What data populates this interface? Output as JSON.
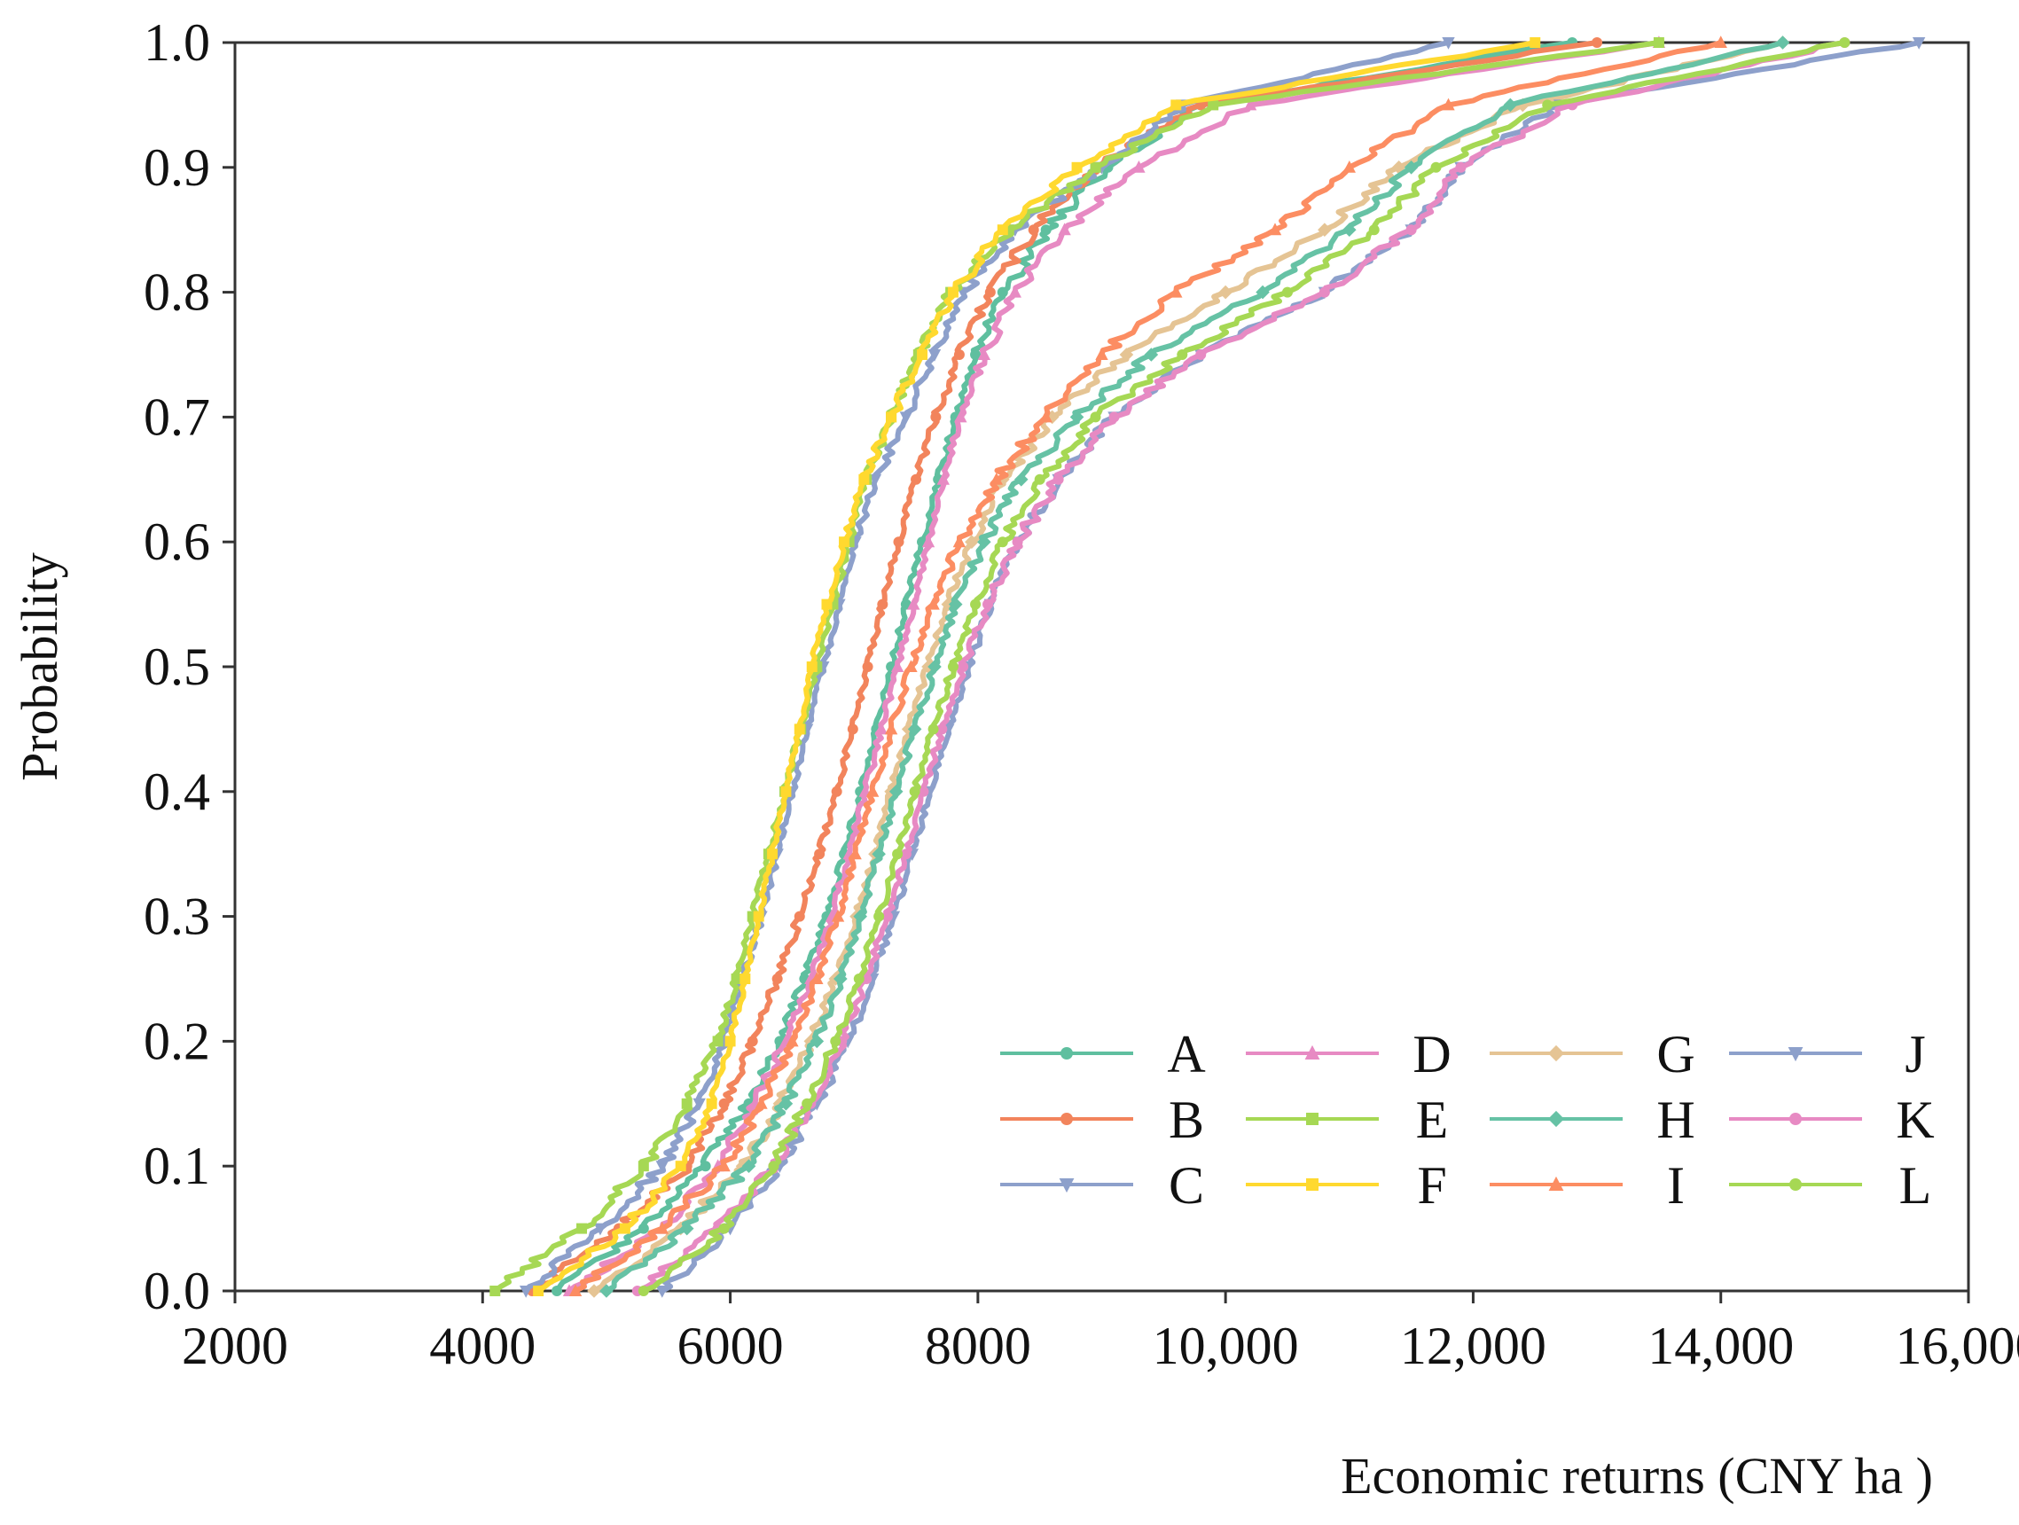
{
  "chart_data": {
    "type": "line",
    "title": "",
    "xlabel": "Economic returns (CNY ha )",
    "ylabel": "Probability",
    "xlim": [
      2000,
      16000
    ],
    "ylim": [
      0.0,
      1.0
    ],
    "x_ticks": [
      2000,
      4000,
      6000,
      8000,
      10000,
      12000,
      14000,
      16000
    ],
    "x_tick_labels": [
      "2000",
      "4000",
      "6000",
      "8000",
      "10,000",
      "12,000",
      "14,000",
      "16,000"
    ],
    "y_ticks": [
      0.0,
      0.1,
      0.2,
      0.3,
      0.4,
      0.5,
      0.6,
      0.7,
      0.8,
      0.9,
      1.0
    ],
    "y_tick_labels": [
      "0.0",
      "0.1",
      "0.2",
      "0.3",
      "0.4",
      "0.5",
      "0.6",
      "0.7",
      "0.8",
      "0.9",
      "1.0"
    ],
    "grid": false,
    "legend_position": "bottom-right",
    "probabilities": [
      0.0,
      0.05,
      0.1,
      0.15,
      0.2,
      0.25,
      0.3,
      0.35,
      0.4,
      0.45,
      0.5,
      0.55,
      0.6,
      0.65,
      0.7,
      0.75,
      0.8,
      0.85,
      0.9,
      0.95,
      1.0
    ],
    "series": [
      {
        "name": "A",
        "color": "#5fbf9f",
        "marker": "circle",
        "x": [
          4600,
          5300,
          5800,
          6150,
          6400,
          6600,
          6780,
          6920,
          7050,
          7180,
          7300,
          7420,
          7550,
          7680,
          7820,
          7980,
          8200,
          8550,
          9050,
          9800,
          12800
        ]
      },
      {
        "name": "B",
        "color": "#f2845c",
        "marker": "circle",
        "x": [
          4400,
          5100,
          5650,
          5950,
          6180,
          6380,
          6560,
          6720,
          6860,
          6990,
          7110,
          7230,
          7360,
          7500,
          7660,
          7850,
          8100,
          8450,
          8950,
          9800,
          13000
        ]
      },
      {
        "name": "C",
        "color": "#8da0cb",
        "marker": "triangle-down",
        "x": [
          4350,
          4950,
          5450,
          5750,
          5950,
          6100,
          6250,
          6380,
          6500,
          6620,
          6750,
          6880,
          7010,
          7170,
          7420,
          7650,
          7880,
          8300,
          9000,
          9650,
          11800
        ]
      },
      {
        "name": "D",
        "color": "#e78ac3",
        "marker": "triangle-up",
        "x": [
          4700,
          5450,
          5900,
          6200,
          6450,
          6650,
          6820,
          6960,
          7090,
          7220,
          7350,
          7480,
          7600,
          7720,
          7860,
          8050,
          8300,
          8700,
          9300,
          10200,
          13500
        ]
      },
      {
        "name": "E",
        "color": "#a6d854",
        "marker": "square",
        "x": [
          4100,
          4800,
          5300,
          5650,
          5900,
          6050,
          6180,
          6310,
          6440,
          6570,
          6700,
          6830,
          6960,
          7100,
          7300,
          7520,
          7780,
          8250,
          8950,
          9900,
          13500
        ]
      },
      {
        "name": "F",
        "color": "#ffd92f",
        "marker": "square",
        "x": [
          4450,
          5150,
          5600,
          5850,
          6000,
          6120,
          6230,
          6340,
          6450,
          6560,
          6660,
          6780,
          6920,
          7080,
          7300,
          7550,
          7800,
          8200,
          8800,
          9600,
          12500
        ]
      },
      {
        "name": "G",
        "color": "#e5c494",
        "marker": "diamond",
        "x": [
          4900,
          5600,
          6100,
          6400,
          6650,
          6850,
          7020,
          7170,
          7300,
          7440,
          7600,
          7760,
          7950,
          8200,
          8600,
          9200,
          10000,
          10800,
          11400,
          12400,
          14500
        ]
      },
      {
        "name": "H",
        "color": "#66c2a5",
        "marker": "diamond",
        "x": [
          5000,
          5650,
          6150,
          6450,
          6700,
          6890,
          7050,
          7200,
          7340,
          7490,
          7650,
          7820,
          8050,
          8350,
          8800,
          9400,
          10300,
          11000,
          11500,
          12300,
          14500
        ]
      },
      {
        "name": "I",
        "color": "#fc8d62",
        "marker": "triangle-up",
        "x": [
          4750,
          5450,
          5950,
          6250,
          6500,
          6700,
          6870,
          7010,
          7150,
          7300,
          7460,
          7640,
          7850,
          8150,
          8550,
          9000,
          9600,
          10400,
          11000,
          11800,
          14000
        ]
      },
      {
        "name": "J",
        "color": "#8da0cb",
        "marker": "triangle-down",
        "x": [
          5450,
          6000,
          6400,
          6700,
          6950,
          7150,
          7320,
          7470,
          7610,
          7760,
          7920,
          8100,
          8320,
          8650,
          9100,
          9800,
          10800,
          11500,
          11900,
          12700,
          15600
        ]
      },
      {
        "name": "K",
        "color": "#e78ac3",
        "marker": "circle",
        "x": [
          5250,
          5900,
          6350,
          6650,
          6900,
          7100,
          7270,
          7420,
          7560,
          7710,
          7880,
          8080,
          8320,
          8650,
          9100,
          9800,
          10800,
          11500,
          11900,
          12800,
          15000
        ]
      },
      {
        "name": "L",
        "color": "#a6d854",
        "marker": "circle",
        "x": [
          5300,
          5950,
          6350,
          6620,
          6850,
          7040,
          7200,
          7350,
          7490,
          7640,
          7800,
          7980,
          8200,
          8500,
          8950,
          9650,
          10500,
          11200,
          11700,
          12600,
          15000
        ]
      }
    ]
  }
}
